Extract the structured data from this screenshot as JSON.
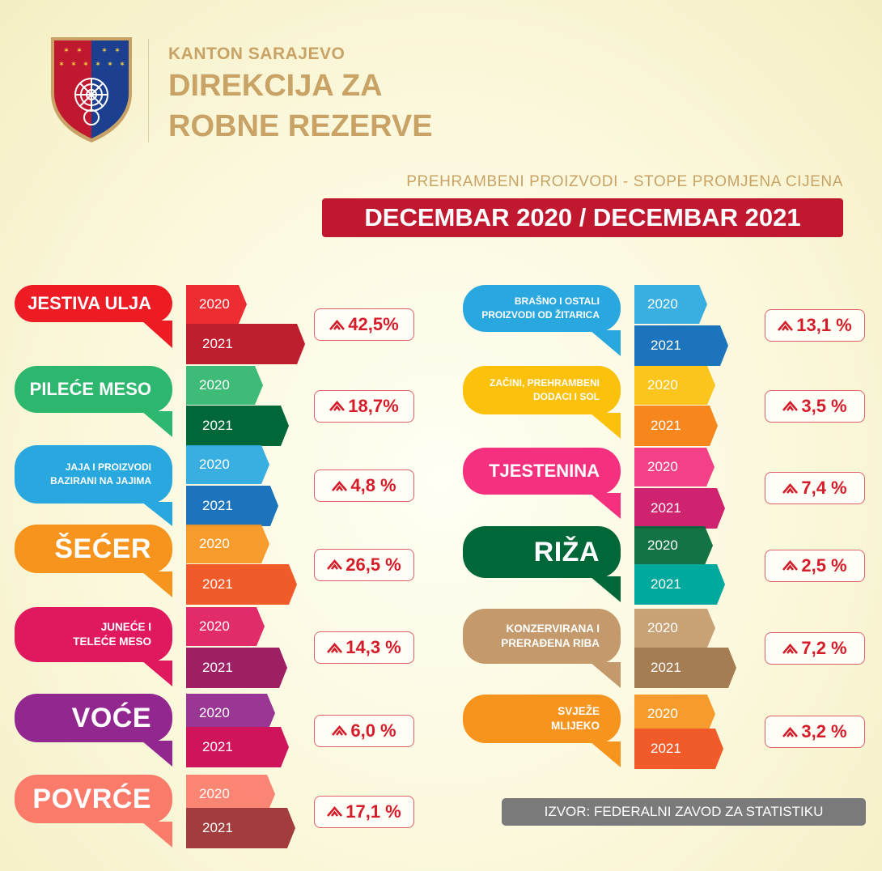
{
  "header": {
    "org": "KANTON SARAJEVO",
    "title_line1": "DIREKCIJA ZA",
    "title_line2": "ROBNE REZERVE"
  },
  "subtitle": "PREHRAMBENI PROIZVODI - STOPE PROMJENA CIJENA",
  "period": "DECEMBAR 2020 / DECEMBAR  2021",
  "source": "IZVOR: FEDERALNI ZAVOD ZA STATISTIKU",
  "year_labels": [
    "2020",
    "2021"
  ],
  "chart_data": {
    "type": "bar",
    "title": "DECEMBAR 2020 / DECEMBAR  2021",
    "subtitle": "PREHRAMBENI PROIZVODI - STOPE PROMJENA CIJENA",
    "unit": "%",
    "direction": "up",
    "categories": [
      {
        "label": "JESTIVA ULJA",
        "lines": [
          "JESTIVA ULJA"
        ],
        "change": 42.5,
        "text": "42,5%",
        "colors": [
          "#ed1c24",
          "#be1e2d"
        ]
      },
      {
        "label": "PILEĆE MESO",
        "lines": [
          "PILEĆE MESO"
        ],
        "change": 18.7,
        "text": "18,7%",
        "colors": [
          "#2db66e",
          "#006838"
        ]
      },
      {
        "label": "JAJA I PROIZVODI BAZIRANI NA JAJIMA",
        "lines": [
          "JAJA I PROIZVODI",
          "BAZIRANI NA JAJIMA"
        ],
        "change": 4.8,
        "text": "4,8 %",
        "colors": [
          "#29a8e0",
          "#1c75bc"
        ]
      },
      {
        "label": "ŠEĆER",
        "lines": [
          "ŠEĆER"
        ],
        "change": 26.5,
        "text": "26,5 %",
        "colors": [
          "#f7941d",
          "#f15a29"
        ]
      },
      {
        "label": "JUNEĆE I TELEĆE MESO",
        "lines": [
          "JUNEĆE I",
          "TELEĆE MESO"
        ],
        "change": 14.3,
        "text": "14,3 %",
        "colors": [
          "#e0195f",
          "#9e1f63"
        ]
      },
      {
        "label": "VOĆE",
        "lines": [
          "VOĆE"
        ],
        "change": 6.0,
        "text": "6,0 %",
        "colors": [
          "#92278f",
          "#d0145c"
        ]
      },
      {
        "label": "POVRĆE",
        "lines": [
          "POVRĆE"
        ],
        "change": 17.1,
        "text": "17,1 %",
        "colors": [
          "#fb7b6b",
          "#a33c3c"
        ]
      },
      {
        "label": "BRAŠNO I OSTALI PROIZVODI OD ŽITARICA",
        "lines": [
          "BRAŠNO I OSTALI",
          "PROIZVODI OD ŽITARICA"
        ],
        "change": 13.1,
        "text": "13,1 %",
        "colors": [
          "#29a8e0",
          "#1c75bc"
        ]
      },
      {
        "label": "ZAČINI, PREHRAMBENI DODACI I SOL",
        "lines": [
          "ZAČINI, PREHRAMBENI",
          "DODACI I SOL"
        ],
        "change": 3.5,
        "text": "3,5 %",
        "colors": [
          "#fbc10b",
          "#f7861d"
        ]
      },
      {
        "label": "TJESTENINA",
        "lines": [
          "TJESTENINA"
        ],
        "change": 7.4,
        "text": "7,4 %",
        "colors": [
          "#f4307f",
          "#cf2370"
        ]
      },
      {
        "label": "RIŽA",
        "lines": [
          "RIŽA"
        ],
        "change": 2.5,
        "text": "2,5 %",
        "colors": [
          "#006838",
          "#00a99d"
        ]
      },
      {
        "label": "KONZERVIRANA I PRERAĐENA RIBA",
        "lines": [
          "KONZERVIRANA I",
          "PRERAĐENA RIBA"
        ],
        "change": 7.2,
        "text": "7,2 %",
        "colors": [
          "#c49a6c",
          "#a67c52"
        ]
      },
      {
        "label": "SVJEŽE MLIJEKO",
        "lines": [
          "SVJEŽE",
          "MLIJEKO"
        ],
        "change": 3.2,
        "text": "3,2 %",
        "colors": [
          "#f7941d",
          "#f15a29"
        ]
      }
    ]
  }
}
